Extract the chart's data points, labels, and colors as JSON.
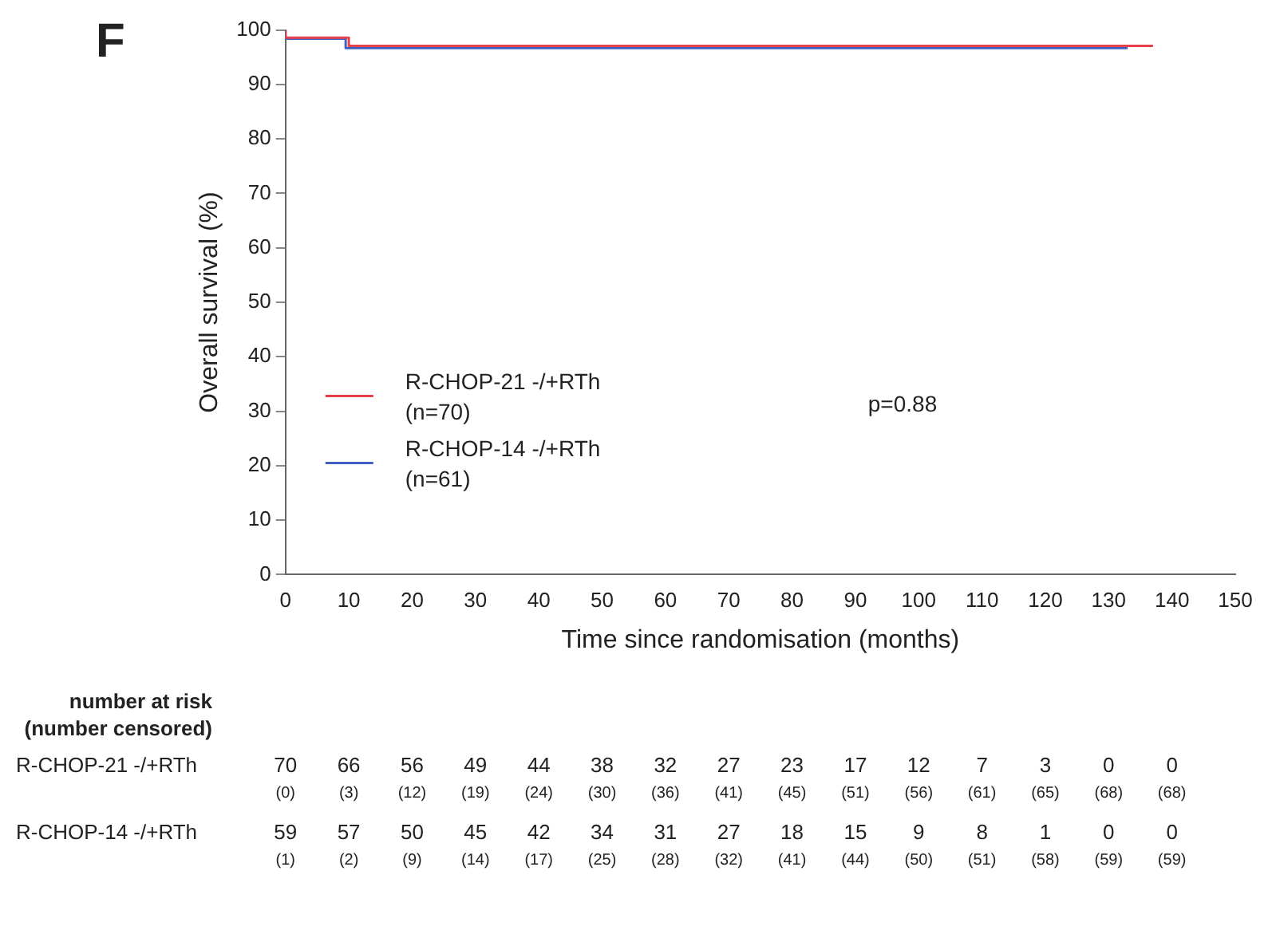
{
  "chart_data": {
    "type": "step",
    "xlabel": "Time since randomisation (months)",
    "ylabel": "Overall survival (%)",
    "xlim": [
      0,
      150
    ],
    "xticks": [
      0,
      10,
      20,
      30,
      40,
      50,
      60,
      70,
      80,
      90,
      100,
      110,
      120,
      130,
      140,
      150
    ],
    "ylim": [
      0,
      100
    ],
    "yticks": [
      0,
      10,
      20,
      30,
      40,
      50,
      60,
      70,
      80,
      90,
      100
    ],
    "grid": false,
    "legend": "bottom left",
    "series": [
      {
        "name": "R-CHOP-21 -/+RTh (n=70)",
        "color": "#e8404a",
        "x": [
          0,
          10,
          18,
          137
        ],
        "values": [
          100,
          98.6,
          97.1,
          97.1
        ]
      },
      {
        "name": "R-CHOP-14 -/+RTh (n=61)",
        "color": "#4060c0",
        "x": [
          0,
          9.5,
          19.5,
          133
        ],
        "values": [
          100,
          98.4,
          96.7,
          96.7
        ]
      }
    ],
    "annotations": [
      "F",
      "p=0.88",
      "number at risk",
      "(number censored)",
      "R-CHOP-21 -/+RTh",
      "70 66 56 49 44 38 32 27 23 17 12 7 3 0 0",
      "(0) (3) (12) (19) (24) (30) (36) (41) (45) (51) (56) (61) (65) (68) (68)",
      "R-CHOP-14 -/+RTh",
      "59 57 50 45 42 34 31 27 18 15 9 8 1 0 0",
      "(1) (2) (9) (14) (17) (25) (28) (32) (41) (44) (50) (51) (58) (59) (59)"
    ]
  }
}
